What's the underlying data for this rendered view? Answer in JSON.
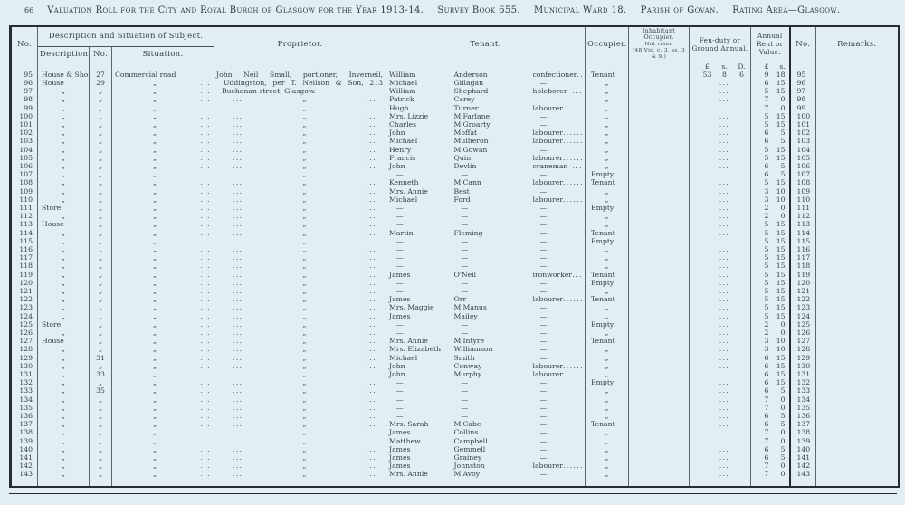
{
  "header_line": {
    "page_number": "66",
    "title": "Valuation Roll for the City and Royal Burgh of Glasgow for the Year 1913-14.",
    "survey": "Survey Book 655.",
    "ward": "Municipal Ward 18.",
    "parish": "Parish of Govan.",
    "rating": "Rating Area—Glasgow."
  },
  "table": {
    "headers": {
      "no_left": "No.",
      "desc_sit_group": "Description and Situation of Subject.",
      "description": "Description.",
      "street_no": "No.",
      "situation": "Situation.",
      "proprietor": "Proprietor.",
      "tenant": "Tenant.",
      "occupier": "Occupier.",
      "inhabitant_l1": "Inhabitant Occupier.",
      "inhabitant_l2": "Not rated",
      "inhabitant_l3": "(48 Vic. c. 3, ss. 3 & 9.)",
      "feu": "Feu-duty or Ground Annual.",
      "annual": "Annual Rent or Value.",
      "no_right": "No.",
      "remarks": "Remarks."
    },
    "units": {
      "feu": [
        "£",
        "s.",
        "D."
      ],
      "rent": [
        "£",
        "s."
      ]
    },
    "rows": [
      {
        "n": "95",
        "d": "House & Shop",
        "sn": "27",
        "s": "Commercial road",
        "sd": "",
        "p": "John Neil Small, portioner, Inverneil,",
        "pi": 2,
        "pj": true,
        "tf": "William",
        "tl": "Anderson",
        "to": "confectioner",
        "td": "...",
        "oc": "Tenant",
        "f": [
          "53",
          "8",
          "6"
        ],
        "rl": "9",
        "rs": "18"
      },
      {
        "n": "96",
        "d": "House",
        "sn": "29",
        "s": "„",
        "sd": "...",
        "p": "Uddingston, per T. Neilson & Son, 213",
        "pi": 10,
        "pj": true,
        "tf": "Michael",
        "tl": "Gillagan",
        "to": "—",
        "td": "",
        "oc": "„",
        "f": "...",
        "rl": "6",
        "rs": "15"
      },
      {
        "n": "97",
        "d": "„",
        "sn": "„",
        "s": "„",
        "sd": "...",
        "p": "Buchanan street, Glasgow.",
        "pi": 8,
        "pj": false,
        "tf": "William",
        "tl": "Shephard",
        "to": "holeborer",
        "td": "...",
        "oc": "„",
        "f": "...",
        "rl": "5",
        "rs": "15"
      },
      {
        "n": "98",
        "d": "„",
        "sn": "„",
        "s": "„",
        "sd": "...",
        "tf": "Patrick",
        "tl": "Carey",
        "to": "—",
        "td": "",
        "oc": "„",
        "f": "...",
        "rl": "7",
        "rs": "0"
      },
      {
        "n": "99",
        "d": "„",
        "sn": "„",
        "s": "„",
        "sd": "...",
        "tf": "Hugh",
        "tl": "Turner",
        "to": "labourer",
        "td": "... ...",
        "oc": "„",
        "f": "...",
        "rl": "7",
        "rs": "0"
      },
      {
        "n": "100",
        "d": "„",
        "sn": "„",
        "s": "„",
        "sd": "...",
        "tf": "Mrs. Lizzie",
        "tl": "M'Farlane",
        "to": "—",
        "td": "",
        "oc": "„",
        "f": "...",
        "rl": "5",
        "rs": "15"
      },
      {
        "n": "101",
        "d": "„",
        "sn": "„",
        "s": "„",
        "sd": "...",
        "tf": "Charles",
        "tl": "M'Groarty",
        "to": "—",
        "td": "",
        "oc": "„",
        "f": "...",
        "rl": "5",
        "rs": "15"
      },
      {
        "n": "102",
        "d": "„",
        "sn": "„",
        "s": "„",
        "sd": "...",
        "tf": "John",
        "tl": "Moffat",
        "to": "labourer",
        "td": "... ...",
        "oc": "„",
        "f": "...",
        "rl": "6",
        "rs": "5"
      },
      {
        "n": "103",
        "d": "„",
        "sn": "„",
        "s": "„",
        "sd": "...",
        "tf": "Michael",
        "tl": "Mulheron",
        "to": "labourer",
        "td": "... ...",
        "oc": "„",
        "f": "...",
        "rl": "6",
        "rs": "5"
      },
      {
        "n": "104",
        "d": "„",
        "sn": "„",
        "s": "„",
        "sd": "...",
        "tf": "Henry",
        "tl": "M'Gowan",
        "to": "—",
        "td": "",
        "oc": "„",
        "f": "...",
        "rl": "5",
        "rs": "15"
      },
      {
        "n": "105",
        "d": "„",
        "sn": "„",
        "s": "„",
        "sd": "...",
        "tf": "Francis",
        "tl": "Quin",
        "to": "labourer",
        "td": "... ...",
        "oc": "„",
        "f": "...",
        "rl": "5",
        "rs": "15"
      },
      {
        "n": "106",
        "d": "„",
        "sn": "„",
        "s": "„",
        "sd": "...",
        "tf": "John",
        "tl": "Devlin",
        "to": "craneman",
        "td": "...",
        "oc": "„",
        "f": "...",
        "rl": "6",
        "rs": "5"
      },
      {
        "n": "107",
        "d": "„",
        "sn": "„",
        "s": "„",
        "sd": "...",
        "tf": "—",
        "tl": "—",
        "to": "—",
        "td": "",
        "oc": "Empty",
        "f": "...",
        "rl": "6",
        "rs": "5"
      },
      {
        "n": "108",
        "d": "„",
        "sn": "„",
        "s": "„",
        "sd": "...",
        "tf": "Kenneth",
        "tl": "M'Cann",
        "to": "labourer",
        "td": "... ...",
        "oc": "Tenant",
        "f": "...",
        "rl": "5",
        "rs": "15"
      },
      {
        "n": "109",
        "d": "„",
        "sn": "„",
        "s": "„",
        "sd": "...",
        "tf": "Mrs. Annie",
        "tl": "Best",
        "to": "—",
        "td": "",
        "oc": "„",
        "f": "...",
        "rl": "3",
        "rs": "10"
      },
      {
        "n": "110",
        "d": "„",
        "sn": "„",
        "s": "„",
        "sd": "...",
        "tf": "Michael",
        "tl": "Ford",
        "to": "labourer",
        "td": "... ...",
        "oc": "„",
        "f": "...",
        "rl": "3",
        "rs": "10"
      },
      {
        "n": "111",
        "d": "Store",
        "sn": "„",
        "s": "„",
        "sd": "...",
        "tf": "—",
        "tl": "—",
        "to": "—",
        "td": "",
        "oc": "Empty",
        "f": "...",
        "rl": "2",
        "rs": "0"
      },
      {
        "n": "112",
        "d": "„",
        "sn": "„",
        "s": "„",
        "sd": "...",
        "tf": "—",
        "tl": "—",
        "to": "—",
        "td": "",
        "oc": "„",
        "f": "...",
        "rl": "2",
        "rs": "0"
      },
      {
        "n": "113",
        "d": "House",
        "sn": "„",
        "s": "„",
        "sd": "...",
        "tf": "—",
        "tl": "—",
        "to": "—",
        "td": "",
        "oc": "„",
        "f": "...",
        "rl": "5",
        "rs": "15"
      },
      {
        "n": "114",
        "d": "„",
        "sn": "„",
        "s": "„",
        "sd": "...",
        "tf": "Martin",
        "tl": "Fleming",
        "to": "—",
        "td": "",
        "oc": "Tenant",
        "f": "...",
        "rl": "5",
        "rs": "15"
      },
      {
        "n": "115",
        "d": "„",
        "sn": "„",
        "s": "„",
        "sd": "...",
        "tf": "—",
        "tl": "—",
        "to": "—",
        "td": "",
        "oc": "Empty",
        "f": "...",
        "rl": "5",
        "rs": "15"
      },
      {
        "n": "116",
        "d": "„",
        "sn": "„",
        "s": "„",
        "sd": "...",
        "tf": "—",
        "tl": "—",
        "to": "—",
        "td": "",
        "oc": "„",
        "f": "...",
        "rl": "5",
        "rs": "15"
      },
      {
        "n": "117",
        "d": "„",
        "sn": "„",
        "s": "„",
        "sd": "...",
        "tf": "—",
        "tl": "—",
        "to": "—",
        "td": "",
        "oc": "„",
        "f": "...",
        "rl": "5",
        "rs": "15"
      },
      {
        "n": "118",
        "d": "„",
        "sn": "„",
        "s": "„",
        "sd": "...",
        "tf": "—",
        "tl": "—",
        "to": "—",
        "td": "",
        "oc": "„",
        "f": "...",
        "rl": "5",
        "rs": "15"
      },
      {
        "n": "119",
        "d": "„",
        "sn": "„",
        "s": "„",
        "sd": "...",
        "tf": "James",
        "tl": "O'Neil",
        "to": "ironworker",
        "td": "...",
        "oc": "Tenant",
        "f": "...",
        "rl": "5",
        "rs": "15"
      },
      {
        "n": "120",
        "d": "„",
        "sn": "„",
        "s": "„",
        "sd": "...",
        "tf": "—",
        "tl": "—",
        "to": "—",
        "td": "",
        "oc": "Empty",
        "f": "...",
        "rl": "5",
        "rs": "15"
      },
      {
        "n": "121",
        "d": "„",
        "sn": "„",
        "s": "„",
        "sd": "...",
        "tf": "—",
        "tl": "—",
        "to": "—",
        "td": "",
        "oc": "„",
        "f": "...",
        "rl": "5",
        "rs": "15"
      },
      {
        "n": "122",
        "d": "„",
        "sn": "„",
        "s": "„",
        "sd": "...",
        "tf": "James",
        "tl": "Orr",
        "to": "labourer",
        "td": "... ...",
        "oc": "Tenant",
        "f": "...",
        "rl": "5",
        "rs": "15"
      },
      {
        "n": "123",
        "d": "„",
        "sn": "„",
        "s": "„",
        "sd": "...",
        "tf": "Mrs. Maggie",
        "tl": "M'Manus",
        "to": "—",
        "td": "",
        "oc": "„",
        "f": "...",
        "rl": "5",
        "rs": "15"
      },
      {
        "n": "124",
        "d": "„",
        "sn": "„",
        "s": "„",
        "sd": "...",
        "tf": "James",
        "tl": "Mailey",
        "to": "—",
        "td": "",
        "oc": "„",
        "f": "...",
        "rl": "5",
        "rs": "15"
      },
      {
        "n": "125",
        "d": "Store",
        "sn": "„",
        "s": "„",
        "sd": "...",
        "tf": "—",
        "tl": "—",
        "to": "—",
        "td": "",
        "oc": "Empty",
        "f": "...",
        "rl": "2",
        "rs": "0"
      },
      {
        "n": "126",
        "d": "„",
        "sn": "„",
        "s": "„",
        "sd": "...",
        "tf": "—",
        "tl": "—",
        "to": "—",
        "td": "",
        "oc": "„",
        "f": "...",
        "rl": "2",
        "rs": "0"
      },
      {
        "n": "127",
        "d": "House",
        "sn": "„",
        "s": "„",
        "sd": "...",
        "tf": "Mrs. Annie",
        "tl": "M'Intyre",
        "to": "—",
        "td": "",
        "oc": "Tenant",
        "f": "...",
        "rl": "3",
        "rs": "10"
      },
      {
        "n": "128",
        "d": "„",
        "sn": "„",
        "s": "„",
        "sd": "...",
        "tf": "Mrs. Elizabeth",
        "tl": "Williamson",
        "to": "—",
        "td": "",
        "oc": "„",
        "f": "...",
        "rl": "3",
        "rs": "10"
      },
      {
        "n": "129",
        "d": "„",
        "sn": "31",
        "s": "„",
        "sd": "...",
        "tf": "Michael",
        "tl": "Smith",
        "to": "—",
        "td": "",
        "oc": "„",
        "f": "...",
        "rl": "6",
        "rs": "15"
      },
      {
        "n": "130",
        "d": "„",
        "sn": "„",
        "s": "„",
        "sd": "...",
        "tf": "John",
        "tl": "Conway",
        "to": "labourer",
        "td": "... ...",
        "oc": "„",
        "f": "...",
        "rl": "6",
        "rs": "15"
      },
      {
        "n": "131",
        "d": "„",
        "sn": "33",
        "s": "„",
        "sd": "...",
        "tf": "John",
        "tl": "Murphy",
        "to": "labourer",
        "td": "... ...",
        "oc": "„",
        "f": "...",
        "rl": "6",
        "rs": "15"
      },
      {
        "n": "132",
        "d": "„",
        "sn": "„",
        "s": "„",
        "sd": "...",
        "tf": "—",
        "tl": "—",
        "to": "—",
        "td": "",
        "oc": "Empty",
        "f": "...",
        "rl": "6",
        "rs": "15"
      },
      {
        "n": "133",
        "d": "„",
        "sn": "35",
        "s": "„",
        "sd": "...",
        "tf": "—",
        "tl": "—",
        "to": "—",
        "td": "",
        "oc": "„",
        "f": "...",
        "rl": "6",
        "rs": "5"
      },
      {
        "n": "134",
        "d": "„",
        "sn": "„",
        "s": "„",
        "sd": "...",
        "tf": "—",
        "tl": "—",
        "to": "—",
        "td": "",
        "oc": "„",
        "f": "...",
        "rl": "7",
        "rs": "0"
      },
      {
        "n": "135",
        "d": "„",
        "sn": "„",
        "s": "„",
        "sd": "...",
        "tf": "—",
        "tl": "—",
        "to": "—",
        "td": "",
        "oc": "„",
        "f": "...",
        "rl": "7",
        "rs": "0"
      },
      {
        "n": "136",
        "d": "„",
        "sn": "„",
        "s": "„",
        "sd": "...",
        "tf": "—",
        "tl": "—",
        "to": "—",
        "td": "",
        "oc": "„",
        "f": "...",
        "rl": "6",
        "rs": "5"
      },
      {
        "n": "137",
        "d": "„",
        "sn": "„",
        "s": "„",
        "sd": "...",
        "tf": "Mrs. Sarah",
        "tl": "M'Cabe",
        "to": "—",
        "td": "",
        "oc": "Tenant",
        "f": "...",
        "rl": "6",
        "rs": "5"
      },
      {
        "n": "138",
        "d": "„",
        "sn": "„",
        "s": "„",
        "sd": "...",
        "tf": "James",
        "tl": "Collins",
        "to": "—",
        "td": "",
        "oc": "„",
        "f": "...",
        "rl": "7",
        "rs": "0"
      },
      {
        "n": "139",
        "d": "„",
        "sn": "„",
        "s": "„",
        "sd": "...",
        "tf": "Matthew",
        "tl": "Campbell",
        "to": "—",
        "td": "",
        "oc": "„",
        "f": "...",
        "rl": "7",
        "rs": "0"
      },
      {
        "n": "140",
        "d": "„",
        "sn": "„",
        "s": "„",
        "sd": "...",
        "tf": "James",
        "tl": "Gemmell",
        "to": "—",
        "td": "",
        "oc": "„",
        "f": "...",
        "rl": "6",
        "rs": "5"
      },
      {
        "n": "141",
        "d": "„",
        "sn": "„",
        "s": "„",
        "sd": "...",
        "tf": "James",
        "tl": "Grainey",
        "to": "—",
        "td": "",
        "oc": "„",
        "f": "...",
        "rl": "6",
        "rs": "5"
      },
      {
        "n": "142",
        "d": "„",
        "sn": "„",
        "s": "„",
        "sd": "...",
        "tf": "James",
        "tl": "Johnston",
        "to": "labourer",
        "td": "... ...",
        "oc": "„",
        "f": "...",
        "rl": "7",
        "rs": "0"
      },
      {
        "n": "143",
        "d": "„",
        "sn": "„",
        "s": "„",
        "sd": "...",
        "tf": "Mrs. Annie",
        "tl": "M'Avoy",
        "to": "—",
        "td": "",
        "oc": "„",
        "f": "...",
        "rl": "7",
        "rs": "0"
      }
    ]
  }
}
